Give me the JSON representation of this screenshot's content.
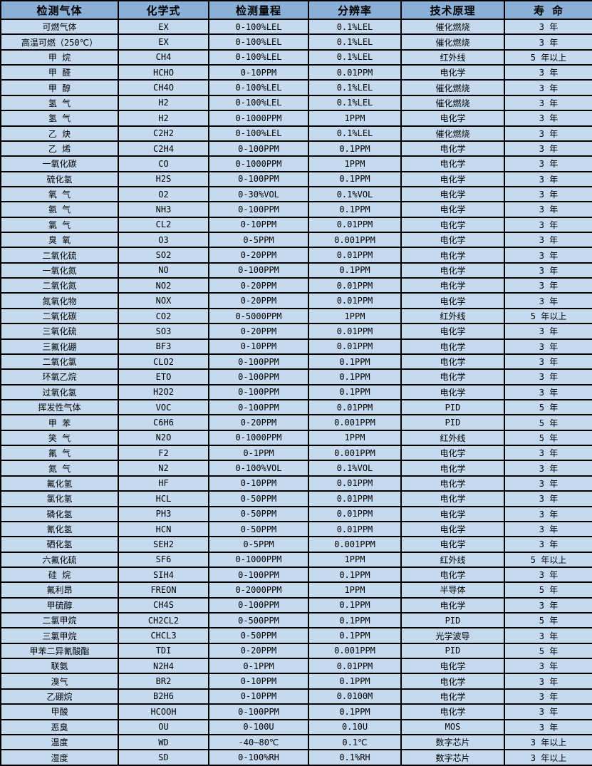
{
  "colors": {
    "header_bg": "#8ab0d8",
    "body_bg": "#c5daef",
    "border": "#000000",
    "text": "#000000"
  },
  "table": {
    "columns": [
      "检测气体",
      "化学式",
      "检测量程",
      "分辨率",
      "技术原理",
      "寿 命"
    ],
    "rows": [
      [
        "可燃气体",
        "EX",
        "0-100%LEL",
        "0.1%LEL",
        "催化燃烧",
        "3 年"
      ],
      [
        "高温可燃（250℃）",
        "EX",
        "0-100%LEL",
        "0.1%LEL",
        "催化燃烧",
        "3 年"
      ],
      [
        "甲 烷",
        "CH4",
        "0-100%LEL",
        "0.1%LEL",
        "红外线",
        "5 年以上"
      ],
      [
        "甲 醛",
        "HCHO",
        "0-10PPM",
        "0.01PPM",
        "电化学",
        "3 年"
      ],
      [
        "甲 醇",
        "CH4O",
        "0-100%LEL",
        "0.1%LEL",
        "催化燃烧",
        "3 年"
      ],
      [
        "氢 气",
        "H2",
        "0-100%LEL",
        "0.1%LEL",
        "催化燃烧",
        "3 年"
      ],
      [
        "氢 气",
        "H2",
        "0-1000PPM",
        "1PPM",
        "电化学",
        "3 年"
      ],
      [
        "乙 炔",
        "C2H2",
        "0-100%LEL",
        "0.1%LEL",
        "催化燃烧",
        "3 年"
      ],
      [
        "乙 烯",
        "C2H4",
        "0-100PPM",
        "0.1PPM",
        "电化学",
        "3 年"
      ],
      [
        "一氧化碳",
        "CO",
        "0-1000PPM",
        "1PPM",
        "电化学",
        "3 年"
      ],
      [
        "硫化氢",
        "H2S",
        "0-100PPM",
        "0.1PPM",
        "电化学",
        "3 年"
      ],
      [
        "氧 气",
        "O2",
        "0-30%VOL",
        "0.1%VOL",
        "电化学",
        "3 年"
      ],
      [
        "氨 气",
        "NH3",
        "0-100PPM",
        "0.1PPM",
        "电化学",
        "3 年"
      ],
      [
        "氯 气",
        "CL2",
        "0-10PPM",
        "0.01PPM",
        "电化学",
        "3 年"
      ],
      [
        "臭 氧",
        "O3",
        "0-5PPM",
        "0.001PPM",
        "电化学",
        "3 年"
      ],
      [
        "二氧化硫",
        "SO2",
        "0-20PPM",
        "0.01PPM",
        "电化学",
        "3 年"
      ],
      [
        "一氧化氮",
        "NO",
        "0-100PPM",
        "0.1PPM",
        "电化学",
        "3 年"
      ],
      [
        "二氧化氮",
        "NO2",
        "0-20PPM",
        "0.01PPM",
        "电化学",
        "3 年"
      ],
      [
        "氮氧化物",
        "NOX",
        "0-20PPM",
        "0.01PPM",
        "电化学",
        "3 年"
      ],
      [
        "二氧化碳",
        "CO2",
        "0-5000PPM",
        "1PPM",
        "红外线",
        "5 年以上"
      ],
      [
        "三氧化硫",
        "SO3",
        "0-20PPM",
        "0.01PPM",
        "电化学",
        "3 年"
      ],
      [
        "三氟化硼",
        "BF3",
        "0-10PPM",
        "0.01PPM",
        "电化学",
        "3 年"
      ],
      [
        "二氧化氯",
        "CLO2",
        "0-100PPM",
        "0.1PPM",
        "电化学",
        "3 年"
      ],
      [
        "环氧乙烷",
        "ETO",
        "0-100PPM",
        "0.1PPM",
        "电化学",
        "3 年"
      ],
      [
        "过氧化氢",
        "H2O2",
        "0-100PPM",
        "0.1PPM",
        "电化学",
        "3 年"
      ],
      [
        "挥发性气体",
        "VOC",
        "0-100PPM",
        "0.01PPM",
        "PID",
        "5 年"
      ],
      [
        "甲 苯",
        "C6H6",
        "0-20PPM",
        "0.001PPM",
        "PID",
        "5 年"
      ],
      [
        "笑 气",
        "N2O",
        "0-1000PPM",
        "1PPM",
        "红外线",
        "5 年"
      ],
      [
        "氟 气",
        "F2",
        "0-1PPM",
        "0.001PPM",
        "电化学",
        "3 年"
      ],
      [
        "氮 气",
        "N2",
        "0-100%VOL",
        "0.1%VOL",
        "电化学",
        "3 年"
      ],
      [
        "氟化氢",
        "HF",
        "0-10PPM",
        "0.01PPM",
        "电化学",
        "3 年"
      ],
      [
        "氯化氢",
        "HCL",
        "0-50PPM",
        "0.01PPM",
        "电化学",
        "3 年"
      ],
      [
        "磷化氢",
        "PH3",
        "0-50PPM",
        "0.01PPM",
        "电化学",
        "3 年"
      ],
      [
        "氰化氢",
        "HCN",
        "0-50PPM",
        "0.01PPM",
        "电化学",
        "3 年"
      ],
      [
        "硒化氢",
        "SEH2",
        "0-5PPM",
        "0.001PPM",
        "电化学",
        "3 年"
      ],
      [
        "六氟化硫",
        "SF6",
        "0-1000PPM",
        "1PPM",
        "红外线",
        "5 年以上"
      ],
      [
        "硅 烷",
        "SIH4",
        "0-100PPM",
        "0.1PPM",
        "电化学",
        "3 年"
      ],
      [
        "氟利昂",
        "FREON",
        "0-2000PPM",
        "1PPM",
        "半导体",
        "5 年"
      ],
      [
        "甲硫醇",
        "CH4S",
        "0-100PPM",
        "0.1PPM",
        "电化学",
        "3 年"
      ],
      [
        "二氯甲烷",
        "CH2CL2",
        "0-500PPM",
        "0.1PPM",
        "PID",
        "5 年"
      ],
      [
        "三氯甲烷",
        "CHCL3",
        "0-50PPM",
        "0.1PPM",
        "光学波导",
        "3 年"
      ],
      [
        "甲苯二异氰酸酯",
        "TDI",
        "0-20PPM",
        "0.001PPM",
        "PID",
        "5 年"
      ],
      [
        "联氨",
        "N2H4",
        "0-1PPM",
        "0.01PPM",
        "电化学",
        "3 年"
      ],
      [
        "溴气",
        "BR2",
        "0-10PPM",
        "0.1PPM",
        "电化学",
        "3 年"
      ],
      [
        "乙硼烷",
        "B2H6",
        "0-10PPM",
        "0.0100M",
        "电化学",
        "3 年"
      ],
      [
        "甲酸",
        "HCOOH",
        "0-100PPM",
        "0.1PPM",
        "电化学",
        "3 年"
      ],
      [
        "恶臭",
        "OU",
        "0-100U",
        "0.10U",
        "MOS",
        "3 年"
      ],
      [
        "温度",
        "WD",
        "-40—80℃",
        "0.1℃",
        "数字芯片",
        "3 年以上"
      ],
      [
        "湿度",
        "SD",
        "0-100%RH",
        "0.1%RH",
        "数字芯片",
        "3 年以上"
      ]
    ]
  }
}
